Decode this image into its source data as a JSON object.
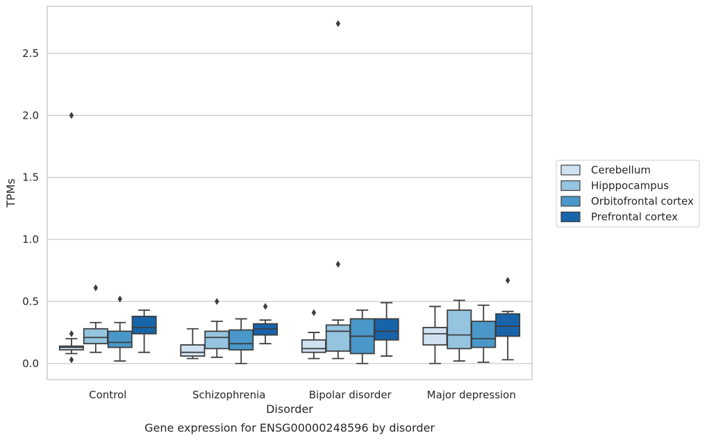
{
  "chart_data": {
    "type": "box",
    "title": "",
    "caption": "Gene expression for ENSG00000248596 by disorder",
    "xlabel": "Disorder",
    "ylabel": "TPMs",
    "ylim": [
      -0.13,
      2.88
    ],
    "yticks": [
      0.0,
      0.5,
      1.0,
      1.5,
      2.0,
      2.5
    ],
    "ytick_labels": [
      "0.0",
      "0.5",
      "1.0",
      "1.5",
      "2.0",
      "2.5"
    ],
    "grid": "horizontal",
    "legend_position": "right",
    "categories": [
      "Control",
      "Schizophrenia",
      "Bipolar disorder",
      "Major depression"
    ],
    "series": [
      {
        "name": "Cerebellum",
        "color": "#d0e1f2",
        "boxes": [
          {
            "whislo": 0.08,
            "q1": 0.11,
            "med": 0.13,
            "q3": 0.14,
            "whishi": 0.2,
            "fliers": [
              0.24,
              0.03,
              2.0
            ]
          },
          {
            "whislo": 0.04,
            "q1": 0.06,
            "med": 0.09,
            "q3": 0.15,
            "whishi": 0.28,
            "fliers": []
          },
          {
            "whislo": 0.04,
            "q1": 0.09,
            "med": 0.12,
            "q3": 0.19,
            "whishi": 0.25,
            "fliers": [
              0.41
            ]
          },
          {
            "whislo": 0.0,
            "q1": 0.15,
            "med": 0.24,
            "q3": 0.29,
            "whishi": 0.46,
            "fliers": []
          }
        ]
      },
      {
        "name": "Hipppocampus",
        "color": "#94c4df",
        "boxes": [
          {
            "whislo": 0.09,
            "q1": 0.16,
            "med": 0.21,
            "q3": 0.28,
            "whishi": 0.33,
            "fliers": [
              0.61
            ]
          },
          {
            "whislo": 0.05,
            "q1": 0.12,
            "med": 0.21,
            "q3": 0.26,
            "whishi": 0.34,
            "fliers": [
              0.5
            ]
          },
          {
            "whislo": 0.04,
            "q1": 0.1,
            "med": 0.26,
            "q3": 0.31,
            "whishi": 0.35,
            "fliers": [
              0.8,
              2.74
            ]
          },
          {
            "whislo": 0.02,
            "q1": 0.12,
            "med": 0.23,
            "q3": 0.43,
            "whishi": 0.51,
            "fliers": []
          }
        ]
      },
      {
        "name": "Orbitofrontal cortex",
        "color": "#4a98c9",
        "boxes": [
          {
            "whislo": 0.02,
            "q1": 0.13,
            "med": 0.17,
            "q3": 0.26,
            "whishi": 0.33,
            "fliers": [
              0.52
            ]
          },
          {
            "whislo": 0.0,
            "q1": 0.11,
            "med": 0.16,
            "q3": 0.27,
            "whishi": 0.36,
            "fliers": []
          },
          {
            "whislo": 0.0,
            "q1": 0.08,
            "med": 0.22,
            "q3": 0.36,
            "whishi": 0.43,
            "fliers": []
          },
          {
            "whislo": 0.01,
            "q1": 0.13,
            "med": 0.2,
            "q3": 0.34,
            "whishi": 0.47,
            "fliers": []
          }
        ]
      },
      {
        "name": "Prefrontal cortex",
        "color": "#1764ab",
        "boxes": [
          {
            "whislo": 0.09,
            "q1": 0.24,
            "med": 0.29,
            "q3": 0.38,
            "whishi": 0.43,
            "fliers": []
          },
          {
            "whislo": 0.16,
            "q1": 0.23,
            "med": 0.28,
            "q3": 0.32,
            "whishi": 0.35,
            "fliers": [
              0.46
            ]
          },
          {
            "whislo": 0.06,
            "q1": 0.19,
            "med": 0.26,
            "q3": 0.36,
            "whishi": 0.49,
            "fliers": []
          },
          {
            "whislo": 0.03,
            "q1": 0.22,
            "med": 0.3,
            "q3": 0.4,
            "whishi": 0.42,
            "fliers": [
              0.67
            ]
          }
        ]
      }
    ]
  }
}
